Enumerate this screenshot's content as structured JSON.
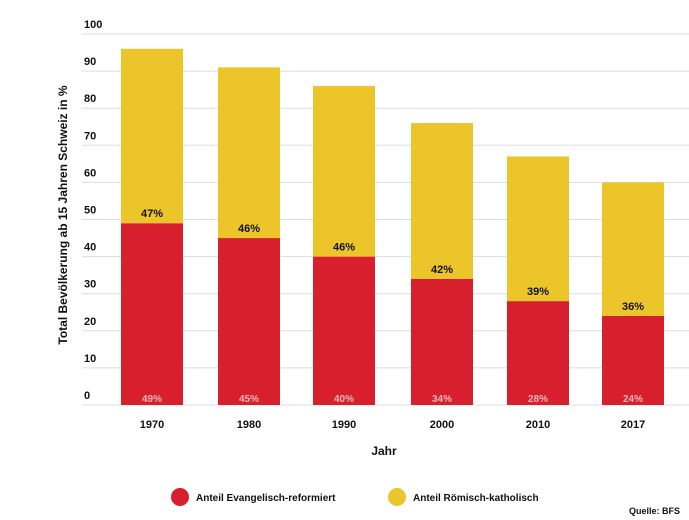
{
  "colors": {
    "reformed": "#d81f2d",
    "catholic": "#ebc52a",
    "grid": "#dddddd",
    "ref_label": "#f2b8b8"
  },
  "source": "Quelle: BFS",
  "chart_data": {
    "type": "bar",
    "stacked": true,
    "title": "",
    "xlabel": "Jahr",
    "ylabel": "Total Bevölkerung ab 15 Jahren Schweiz in %",
    "ylim": [
      0,
      100
    ],
    "yticks": [
      "0",
      "10",
      "20",
      "30",
      "40",
      "50",
      "60",
      "70",
      "80",
      "90",
      "100"
    ],
    "categories": [
      "1970",
      "1980",
      "1990",
      "2000",
      "2010",
      "2017"
    ],
    "grid": true,
    "legend_position": "bottom",
    "series": [
      {
        "name": "Anteil Evangelisch-reformiert",
        "color_key": "reformed",
        "values": [
          49,
          45,
          40,
          34,
          28,
          24
        ],
        "labels": [
          "49%",
          "45%",
          "40%",
          "34%",
          "28%",
          "24%"
        ]
      },
      {
        "name": "Anteil Römisch-katholisch",
        "color_key": "catholic",
        "values": [
          47,
          46,
          46,
          42,
          39,
          36
        ],
        "labels": [
          "47%",
          "46%",
          "46%",
          "42%",
          "39%",
          "36%"
        ]
      }
    ]
  }
}
